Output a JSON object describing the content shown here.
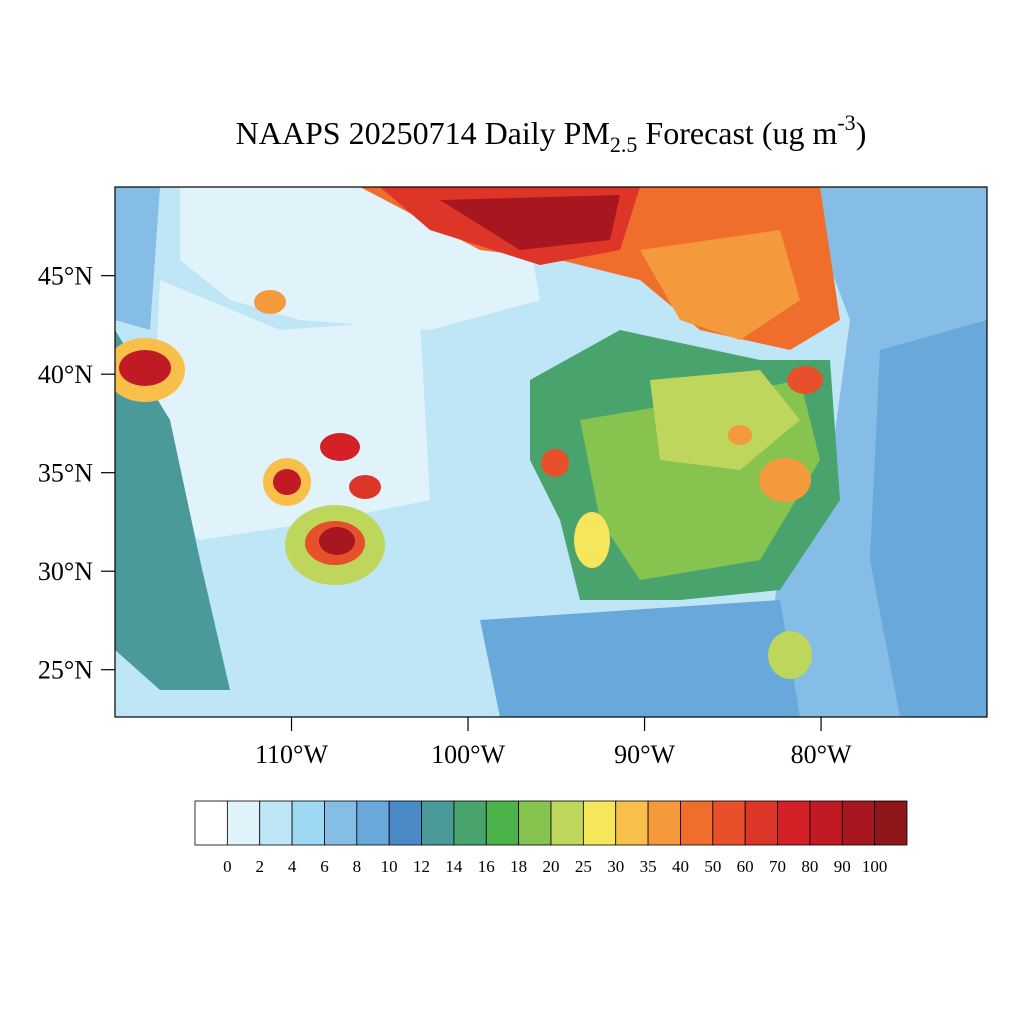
{
  "title": {
    "text": "NAAPS 20250714 Daily PM",
    "sub": "2.5",
    "rest": " Forecast (ug m",
    "sup": "-3",
    "end": ")"
  },
  "map": {
    "xlim": [
      -120,
      -70.6
    ],
    "ylim": [
      22.6,
      49.5
    ],
    "xticks": [
      {
        "value": -110,
        "label": "110°W"
      },
      {
        "value": -100,
        "label": "100°W"
      },
      {
        "value": -90,
        "label": "90°W"
      },
      {
        "value": -80,
        "label": "80°W"
      }
    ],
    "yticks": [
      {
        "value": 45,
        "label": "45°N"
      },
      {
        "value": 40,
        "label": "40°N"
      },
      {
        "value": 35,
        "label": "35°N"
      },
      {
        "value": 30,
        "label": "30°N"
      },
      {
        "value": 25,
        "label": "25°N"
      }
    ]
  },
  "colorbar": {
    "levels": [
      0,
      2,
      4,
      6,
      8,
      10,
      12,
      14,
      16,
      18,
      20,
      25,
      30,
      35,
      40,
      50,
      60,
      70,
      80,
      90,
      100
    ],
    "colors": [
      "#ffffff",
      "#e0f3fb",
      "#bfe6f7",
      "#9fd8f3",
      "#85bde6",
      "#68a8da",
      "#4a8bc7",
      "#4a9a9a",
      "#48a36c",
      "#4cb34a",
      "#86c34f",
      "#bed65c",
      "#f5e65a",
      "#f8c04a",
      "#f59a3c",
      "#f06e2c",
      "#e8502c",
      "#dd3527",
      "#d42027",
      "#c01a24",
      "#a8171f",
      "#8e1518"
    ]
  }
}
